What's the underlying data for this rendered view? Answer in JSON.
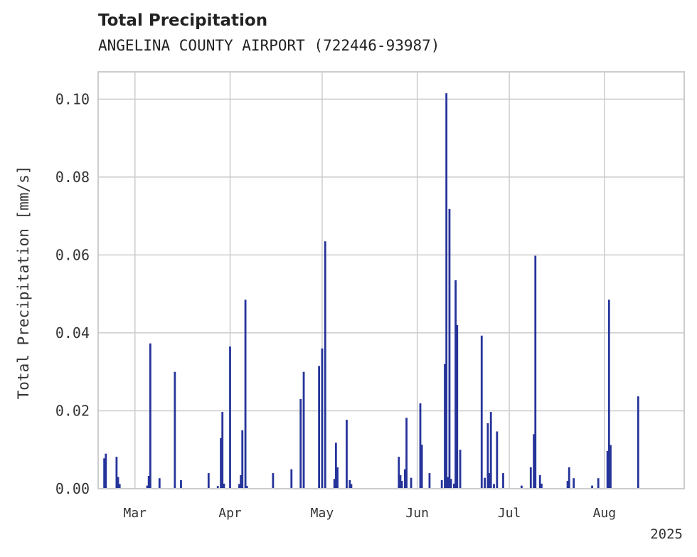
{
  "chart_data": {
    "type": "bar",
    "title": "Total Precipitation",
    "subtitle": "ANGELINA COUNTY AIRPORT (722446-93987)",
    "ylabel": "Total Precipitation [mm/s]",
    "xlabel": "",
    "ylim": [
      0,
      0.107
    ],
    "xlim": [
      "2025-02-17",
      "2025-08-27"
    ],
    "yticks": [
      {
        "value": 0.0,
        "label": "0.00"
      },
      {
        "value": 0.02,
        "label": "0.02"
      },
      {
        "value": 0.04,
        "label": "0.04"
      },
      {
        "value": 0.06,
        "label": "0.06"
      },
      {
        "value": 0.08,
        "label": "0.08"
      },
      {
        "value": 0.1,
        "label": "0.10"
      }
    ],
    "xticks": [
      {
        "date": "2025-03-01",
        "label": "Mar"
      },
      {
        "date": "2025-04-01",
        "label": "Apr"
      },
      {
        "date": "2025-05-01",
        "label": "May"
      },
      {
        "date": "2025-06-01",
        "label": "Jun"
      },
      {
        "date": "2025-07-01",
        "label": "Jul"
      },
      {
        "date": "2025-08-01",
        "label": "Aug"
      }
    ],
    "year_label": "2025",
    "grid": true,
    "series": [
      {
        "color": "#26349a",
        "points": [
          {
            "date": "2025-02-19",
            "value": 0.0078
          },
          {
            "date": "2025-02-19T12:00",
            "value": 0.009
          },
          {
            "date": "2025-02-23",
            "value": 0.0082
          },
          {
            "date": "2025-02-23T12:00",
            "value": 0.003
          },
          {
            "date": "2025-02-24",
            "value": 0.0012
          },
          {
            "date": "2025-03-05",
            "value": 0.0008
          },
          {
            "date": "2025-03-05T12:00",
            "value": 0.0033
          },
          {
            "date": "2025-03-06",
            "value": 0.0373
          },
          {
            "date": "2025-03-09",
            "value": 0.0027
          },
          {
            "date": "2025-03-14",
            "value": 0.03
          },
          {
            "date": "2025-03-16",
            "value": 0.0022
          },
          {
            "date": "2025-03-25",
            "value": 0.004
          },
          {
            "date": "2025-03-28",
            "value": 0.0007
          },
          {
            "date": "2025-03-29",
            "value": 0.013
          },
          {
            "date": "2025-03-29T12:00",
            "value": 0.0197
          },
          {
            "date": "2025-03-30",
            "value": 0.0013
          },
          {
            "date": "2025-04-01",
            "value": 0.0365
          },
          {
            "date": "2025-04-04",
            "value": 0.0012
          },
          {
            "date": "2025-04-04T12:00",
            "value": 0.0035
          },
          {
            "date": "2025-04-05",
            "value": 0.015
          },
          {
            "date": "2025-04-06",
            "value": 0.0485
          },
          {
            "date": "2025-04-06T12:00",
            "value": 0.0007
          },
          {
            "date": "2025-04-15",
            "value": 0.004
          },
          {
            "date": "2025-04-21",
            "value": 0.005
          },
          {
            "date": "2025-04-24",
            "value": 0.023
          },
          {
            "date": "2025-04-25",
            "value": 0.03
          },
          {
            "date": "2025-04-30",
            "value": 0.0315
          },
          {
            "date": "2025-05-01",
            "value": 0.036
          },
          {
            "date": "2025-05-02",
            "value": 0.0635
          },
          {
            "date": "2025-05-05",
            "value": 0.0025
          },
          {
            "date": "2025-05-05T12:00",
            "value": 0.0118
          },
          {
            "date": "2025-05-06",
            "value": 0.0055
          },
          {
            "date": "2025-05-09",
            "value": 0.0177
          },
          {
            "date": "2025-05-10",
            "value": 0.0022
          },
          {
            "date": "2025-05-10T12:00",
            "value": 0.0012
          },
          {
            "date": "2025-05-26",
            "value": 0.0082
          },
          {
            "date": "2025-05-26T12:00",
            "value": 0.0035
          },
          {
            "date": "2025-05-27",
            "value": 0.002
          },
          {
            "date": "2025-05-28",
            "value": 0.005
          },
          {
            "date": "2025-05-28T12:00",
            "value": 0.0182
          },
          {
            "date": "2025-05-30",
            "value": 0.0028
          },
          {
            "date": "2025-06-02",
            "value": 0.0219
          },
          {
            "date": "2025-06-02T12:00",
            "value": 0.0113
          },
          {
            "date": "2025-06-05",
            "value": 0.004
          },
          {
            "date": "2025-06-09",
            "value": 0.0022
          },
          {
            "date": "2025-06-10",
            "value": 0.032
          },
          {
            "date": "2025-06-10T12:00",
            "value": 0.1015
          },
          {
            "date": "2025-06-11",
            "value": 0.003
          },
          {
            "date": "2025-06-11T12:00",
            "value": 0.0718
          },
          {
            "date": "2025-06-12",
            "value": 0.0025
          },
          {
            "date": "2025-06-13",
            "value": 0.0013
          },
          {
            "date": "2025-06-13T12:00",
            "value": 0.0535
          },
          {
            "date": "2025-06-14",
            "value": 0.042
          },
          {
            "date": "2025-06-15",
            "value": 0.01
          },
          {
            "date": "2025-06-22",
            "value": 0.0393
          },
          {
            "date": "2025-06-23",
            "value": 0.0028
          },
          {
            "date": "2025-06-24",
            "value": 0.0168
          },
          {
            "date": "2025-06-24T12:00",
            "value": 0.004
          },
          {
            "date": "2025-06-25",
            "value": 0.0197
          },
          {
            "date": "2025-06-26",
            "value": 0.0012
          },
          {
            "date": "2025-06-27",
            "value": 0.0147
          },
          {
            "date": "2025-06-29",
            "value": 0.004
          },
          {
            "date": "2025-07-05",
            "value": 0.0008
          },
          {
            "date": "2025-07-08",
            "value": 0.0055
          },
          {
            "date": "2025-07-09",
            "value": 0.014
          },
          {
            "date": "2025-07-09T12:00",
            "value": 0.0598
          },
          {
            "date": "2025-07-11",
            "value": 0.0035
          },
          {
            "date": "2025-07-11T12:00",
            "value": 0.0013
          },
          {
            "date": "2025-07-20",
            "value": 0.002
          },
          {
            "date": "2025-07-20T12:00",
            "value": 0.0055
          },
          {
            "date": "2025-07-22",
            "value": 0.0027
          },
          {
            "date": "2025-07-28",
            "value": 0.0008
          },
          {
            "date": "2025-07-30",
            "value": 0.0027
          },
          {
            "date": "2025-08-02",
            "value": 0.0097
          },
          {
            "date": "2025-08-02T12:00",
            "value": 0.0485
          },
          {
            "date": "2025-08-03",
            "value": 0.0112
          },
          {
            "date": "2025-08-12",
            "value": 0.0237
          }
        ]
      }
    ]
  }
}
